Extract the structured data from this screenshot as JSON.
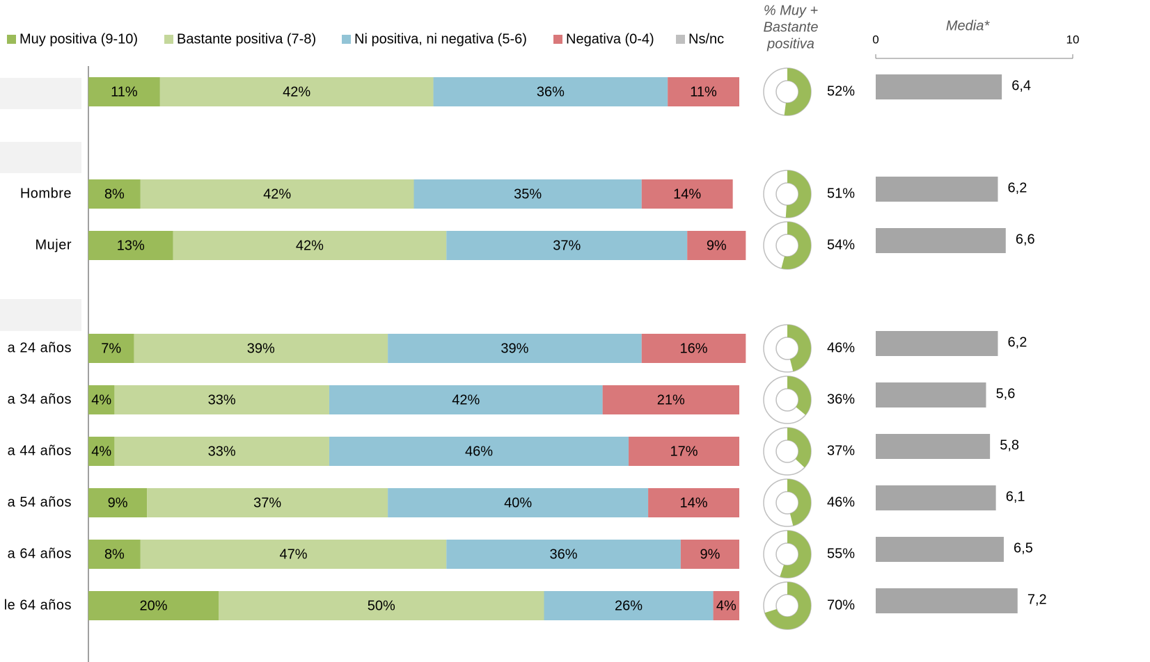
{
  "chart_data": {
    "type": "stacked-bar",
    "categories": [
      null,
      "Hombre",
      "Mujer",
      "a 24 años",
      "a 34 años",
      "a 44 años",
      "a 54 años",
      "a 64 años",
      "le 64 años"
    ],
    "xlim": [
      0,
      100
    ],
    "series": [
      {
        "name": "Muy positiva (9-10)",
        "color": "#9bbb59",
        "values": [
          11,
          8,
          13,
          7,
          4,
          4,
          9,
          8,
          20
        ],
        "value_labels": [
          "11%",
          "8%",
          "13%",
          "7%",
          "4%",
          "4%",
          "9%",
          "8%",
          "20%"
        ]
      },
      {
        "name": "Bastante positiva (7-8)",
        "color": "#c4d79b",
        "values": [
          42,
          42,
          42,
          39,
          33,
          33,
          37,
          47,
          50
        ],
        "value_labels": [
          "42%",
          "42%",
          "42%",
          "39%",
          "33%",
          "33%",
          "37%",
          "47%",
          "50%"
        ]
      },
      {
        "name": "Ni positiva, ni negativa (5-6)",
        "color": "#92c4d6",
        "values": [
          36,
          35,
          37,
          39,
          42,
          46,
          40,
          36,
          26
        ],
        "value_labels": [
          "36%",
          "35%",
          "37%",
          "39%",
          "42%",
          "46%",
          "40%",
          "36%",
          "26%"
        ]
      },
      {
        "name": "Negativa (0-4)",
        "color": "#d9787a",
        "values": [
          11,
          14,
          9,
          16,
          21,
          17,
          14,
          9,
          4
        ],
        "value_labels": [
          "11%",
          "14%",
          "9%",
          "16%",
          "21%",
          "17%",
          "14%",
          "9%",
          "4%"
        ]
      },
      {
        "name": "Ns/nc",
        "color": "#bfbfbf",
        "values": [
          0,
          0,
          0,
          0,
          0,
          0,
          0,
          0,
          0
        ]
      }
    ],
    "donut": {
      "title": [
        "% Muy +",
        "Bastante",
        "positiva"
      ],
      "color": "#9bbb59",
      "values": [
        52,
        51,
        54,
        46,
        36,
        37,
        46,
        55,
        70
      ],
      "value_labels": [
        "52%",
        "51%",
        "54%",
        "46%",
        "36%",
        "37%",
        "46%",
        "55%",
        "70%"
      ]
    },
    "media": {
      "title": "Media*",
      "color": "#a6a6a6",
      "xlim": [
        0,
        10
      ],
      "xticks": [
        0,
        10
      ],
      "values": [
        6.4,
        6.2,
        6.6,
        6.2,
        5.6,
        5.8,
        6.1,
        6.5,
        7.2
      ],
      "value_labels": [
        "6,4",
        "6,2",
        "6,6",
        "6,2",
        "5,6",
        "5,8",
        "6,1",
        "6,5",
        "7,2"
      ]
    }
  }
}
